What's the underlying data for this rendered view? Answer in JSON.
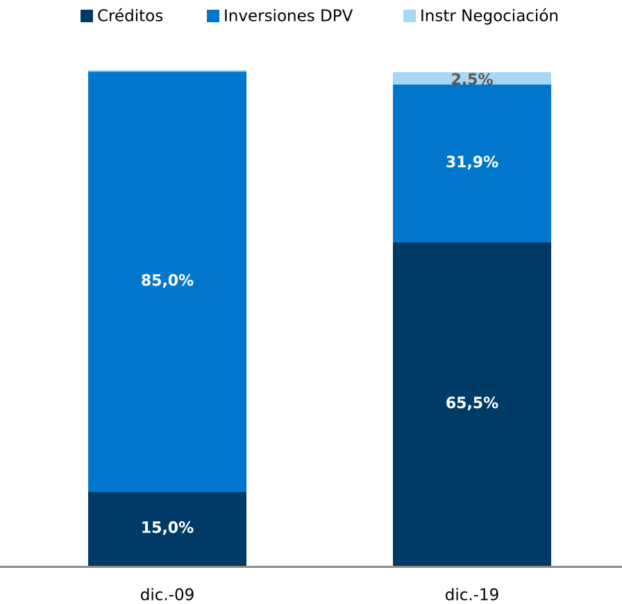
{
  "chart_data": {
    "type": "stacked_bar",
    "categories": [
      "dic.-09",
      "dic.-19"
    ],
    "series": [
      {
        "name": "Créditos",
        "color": "#003a66",
        "values": [
          15.0,
          65.5
        ],
        "value_labels": [
          "15,0%",
          "65,5%"
        ],
        "label_color": "#ffffff"
      },
      {
        "name": "Inversiones DPV",
        "color": "#0077cc",
        "values": [
          85.0,
          31.9
        ],
        "value_labels": [
          "85,0%",
          "31,9%"
        ],
        "label_color": "#ffffff"
      },
      {
        "name": "Instr Negociación",
        "color": "#a6d8f5",
        "values": [
          0.3,
          2.5
        ],
        "value_labels": [
          null,
          "2,5%"
        ],
        "label_color": "#595959"
      }
    ],
    "legend": "top"
  }
}
